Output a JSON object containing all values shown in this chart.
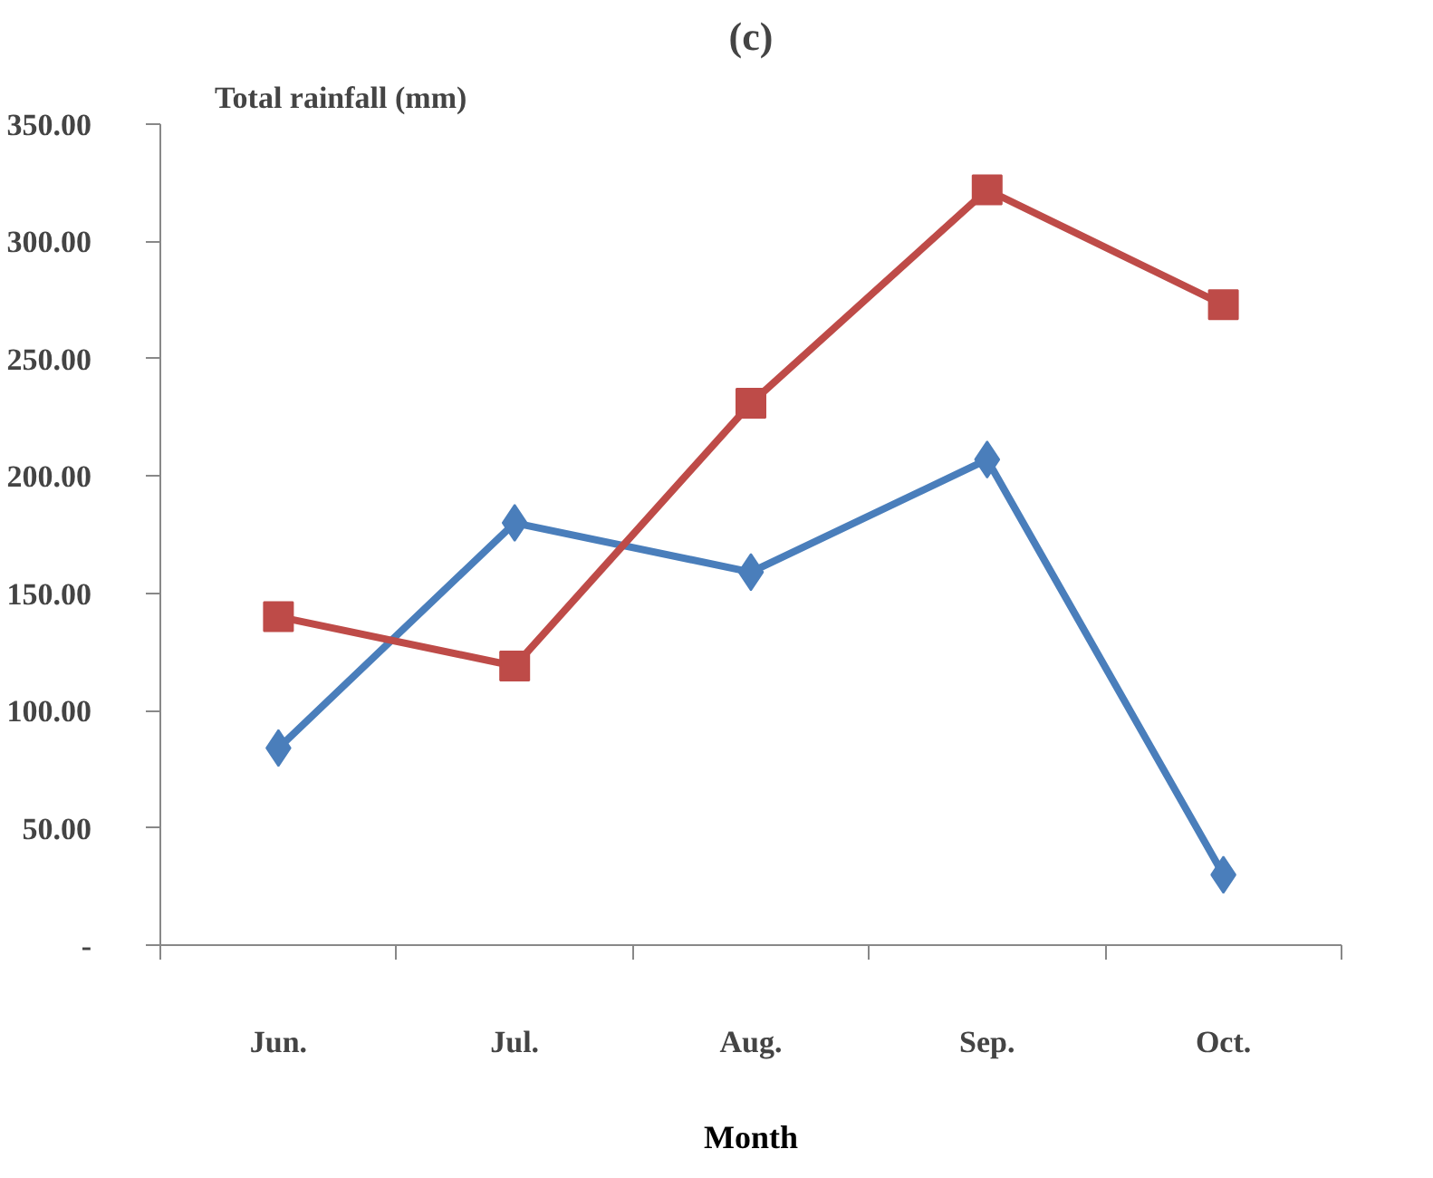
{
  "chart_data": {
    "type": "line",
    "title": "(c)",
    "ylabel": "Total rainfall (mm)",
    "xlabel": "Month",
    "categories": [
      "Jun.",
      "Jul.",
      "Aug.",
      "Sep.",
      "Oct."
    ],
    "series": [
      {
        "color": "#4a7ebb",
        "marker": "diamond",
        "values": [
          84,
          180,
          159,
          207,
          30
        ]
      },
      {
        "color": "#be4b48",
        "marker": "square",
        "values": [
          140,
          119,
          231,
          322,
          273
        ]
      }
    ],
    "ylim": [
      0,
      350
    ],
    "yticks": [
      {
        "value": 0,
        "label": "-"
      },
      {
        "value": 50,
        "label": "50.00"
      },
      {
        "value": 100,
        "label": "100.00"
      },
      {
        "value": 150,
        "label": "150.00"
      },
      {
        "value": 200,
        "label": "200.00"
      },
      {
        "value": 250,
        "label": "250.00"
      },
      {
        "value": 300,
        "label": "300.00"
      },
      {
        "value": 350,
        "label": "350.00"
      }
    ],
    "grid": false,
    "line_style": "solid"
  }
}
